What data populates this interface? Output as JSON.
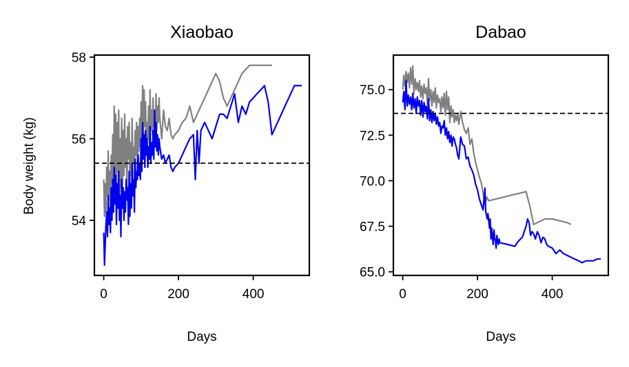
{
  "ylabel_shared": "Body weight (kg)",
  "colors": {
    "blue": "#0000ee",
    "gray": "#808080",
    "baseline": "#000000"
  },
  "chart_data": [
    {
      "type": "line",
      "title": "Xiaobao",
      "xlabel": "Days",
      "ylabel": "Body weight (kg)",
      "xlim": [
        -25,
        550
      ],
      "ylim": [
        52.65,
        58.05
      ],
      "xticks": [
        0,
        200,
        400
      ],
      "yticks": [
        54,
        56,
        58
      ],
      "grid": false,
      "baseline": 55.4,
      "series": [
        {
          "color": "#808080",
          "x": [
            0,
            2,
            4,
            6,
            8,
            10,
            12,
            14,
            16,
            18,
            20,
            22,
            24,
            26,
            28,
            30,
            32,
            34,
            36,
            38,
            40,
            42,
            44,
            46,
            48,
            50,
            52,
            54,
            56,
            58,
            60,
            62,
            64,
            66,
            68,
            70,
            72,
            74,
            76,
            78,
            80,
            82,
            84,
            86,
            88,
            90,
            92,
            94,
            96,
            98,
            100,
            102,
            104,
            106,
            108,
            110,
            112,
            114,
            116,
            118,
            120,
            122,
            124,
            126,
            128,
            130,
            132,
            134,
            136,
            138,
            140,
            142,
            144,
            146,
            148,
            150,
            155,
            160,
            165,
            170,
            175,
            180,
            185,
            190,
            200,
            210,
            220,
            230,
            240,
            250,
            260,
            270,
            280,
            290,
            300,
            310,
            320,
            330,
            340,
            350,
            360,
            370,
            380,
            390,
            400,
            410,
            420,
            430,
            440,
            450
          ],
          "y": [
            55.0,
            54.1,
            54.9,
            54.2,
            55.3,
            54.6,
            55.7,
            54.5,
            55.2,
            54.3,
            55.6,
            54.9,
            56.1,
            54.2,
            56.8,
            55.0,
            56.6,
            54.6,
            56.4,
            55.2,
            56.7,
            54.4,
            56.0,
            54.8,
            56.5,
            54.7,
            56.2,
            55.1,
            56.6,
            55.3,
            56.0,
            54.6,
            56.3,
            55.5,
            56.4,
            54.8,
            55.9,
            55.1,
            56.5,
            55.4,
            55.8,
            54.9,
            56.2,
            55.6,
            56.4,
            55.2,
            56.3,
            55.7,
            56.5,
            55.8,
            56.9,
            56.0,
            57.3,
            56.1,
            57.2,
            56.3,
            56.9,
            55.8,
            56.4,
            56.0,
            56.8,
            55.9,
            57.2,
            56.2,
            56.7,
            56.1,
            57.0,
            56.3,
            56.6,
            56.0,
            57.1,
            56.2,
            56.8,
            56.4,
            57.0,
            56.5,
            56.0,
            56.7,
            56.3,
            56.2,
            56.5,
            56.1,
            56.0,
            56.1,
            56.2,
            56.4,
            56.5,
            56.8,
            56.4,
            56.6,
            56.8,
            57.0,
            57.2,
            57.4,
            57.6,
            57.4,
            57.0,
            56.8,
            57.0,
            57.2,
            57.4,
            57.6,
            57.7,
            57.8,
            57.8,
            57.8,
            57.8,
            57.8,
            57.8,
            57.8
          ]
        },
        {
          "color": "#0000ee",
          "x": [
            0,
            2,
            4,
            6,
            8,
            10,
            12,
            14,
            16,
            18,
            20,
            22,
            24,
            26,
            28,
            30,
            32,
            34,
            36,
            38,
            40,
            42,
            44,
            46,
            48,
            50,
            52,
            54,
            56,
            58,
            60,
            62,
            64,
            66,
            68,
            70,
            72,
            74,
            76,
            78,
            80,
            82,
            84,
            86,
            88,
            90,
            92,
            94,
            96,
            98,
            100,
            102,
            104,
            106,
            108,
            110,
            112,
            114,
            116,
            118,
            120,
            122,
            124,
            126,
            128,
            130,
            132,
            134,
            136,
            138,
            140,
            142,
            144,
            146,
            148,
            150,
            155,
            160,
            165,
            170,
            175,
            180,
            185,
            190,
            200,
            210,
            220,
            230,
            240,
            245,
            250,
            255,
            260,
            270,
            280,
            290,
            300,
            310,
            320,
            330,
            340,
            350,
            360,
            370,
            380,
            390,
            400,
            410,
            420,
            430,
            440,
            450,
            460,
            470,
            480,
            490,
            500,
            510,
            520,
            530
          ],
          "y": [
            53.7,
            52.9,
            53.4,
            53.9,
            54.2,
            53.6,
            54.6,
            53.9,
            54.3,
            53.7,
            54.8,
            54.0,
            55.0,
            54.2,
            55.3,
            54.4,
            55.1,
            53.9,
            54.9,
            54.3,
            55.2,
            54.0,
            54.6,
            53.6,
            55.0,
            54.3,
            54.8,
            54.0,
            54.7,
            54.2,
            55.0,
            54.5,
            54.8,
            53.9,
            55.2,
            54.1,
            54.9,
            54.3,
            55.4,
            54.6,
            55.0,
            54.2,
            55.5,
            54.8,
            55.2,
            55.0,
            55.6,
            55.1,
            55.4,
            55.0,
            56.0,
            55.2,
            56.4,
            55.5,
            56.1,
            55.3,
            56.2,
            55.6,
            56.0,
            55.3,
            55.8,
            55.5,
            56.3,
            55.4,
            55.9,
            55.6,
            56.2,
            55.5,
            56.7,
            55.8,
            56.4,
            55.7,
            56.1,
            55.6,
            56.0,
            55.8,
            55.5,
            55.6,
            55.4,
            55.5,
            55.6,
            55.3,
            55.2,
            55.3,
            55.4,
            55.6,
            55.8,
            56.0,
            56.1,
            55.0,
            56.2,
            55.4,
            56.2,
            56.4,
            56.2,
            56.0,
            56.3,
            56.6,
            56.6,
            56.5,
            56.8,
            57.1,
            56.4,
            56.8,
            56.6,
            56.9,
            57.0,
            57.1,
            57.2,
            57.3,
            56.9,
            56.1,
            56.3,
            56.5,
            56.7,
            56.9,
            57.1,
            57.3,
            57.3,
            57.3
          ]
        }
      ]
    },
    {
      "type": "line",
      "title": "Dabao",
      "xlabel": "Days",
      "ylabel": "",
      "xlim": [
        -25,
        550
      ],
      "ylim": [
        64.8,
        76.9
      ],
      "xticks": [
        0,
        200,
        400
      ],
      "yticks": [
        65.0,
        67.5,
        70.0,
        72.5,
        75.0
      ],
      "ytick_labels": [
        "65.0",
        "67.5",
        "70.0",
        "72.5",
        "75.0"
      ],
      "grid": false,
      "baseline": 73.7,
      "series": [
        {
          "color": "#808080",
          "x": [
            0,
            3,
            6,
            9,
            12,
            15,
            18,
            21,
            24,
            27,
            30,
            33,
            36,
            39,
            42,
            45,
            48,
            51,
            54,
            57,
            60,
            63,
            66,
            69,
            72,
            75,
            78,
            81,
            84,
            87,
            90,
            93,
            96,
            99,
            102,
            105,
            108,
            111,
            114,
            117,
            120,
            123,
            126,
            129,
            132,
            135,
            138,
            141,
            144,
            147,
            150,
            155,
            160,
            165,
            170,
            175,
            180,
            185,
            190,
            195,
            200,
            205,
            210,
            215,
            220,
            225,
            230,
            250,
            270,
            290,
            310,
            330,
            340,
            350,
            360,
            380,
            400,
            420,
            440,
            450
          ],
          "y": [
            75.0,
            75.8,
            75.2,
            76.0,
            75.4,
            75.9,
            75.1,
            76.2,
            75.3,
            76.3,
            74.8,
            75.6,
            75.0,
            75.4,
            74.9,
            75.5,
            74.6,
            75.2,
            74.5,
            75.3,
            74.8,
            75.1,
            74.2,
            75.6,
            74.4,
            75.0,
            74.1,
            74.9,
            74.3,
            75.1,
            74.0,
            74.7,
            74.3,
            74.5,
            73.8,
            74.6,
            74.0,
            74.8,
            73.6,
            74.9,
            73.9,
            74.6,
            73.2,
            74.1,
            73.5,
            73.9,
            73.2,
            73.6,
            73.3,
            73.7,
            73.1,
            73.8,
            73.2,
            72.8,
            72.6,
            72.9,
            72.0,
            72.3,
            71.5,
            71.0,
            70.6,
            70.2,
            69.9,
            69.3,
            68.7,
            69.1,
            68.9,
            69.0,
            69.1,
            69.2,
            69.3,
            69.4,
            68.6,
            67.6,
            67.7,
            67.9,
            67.9,
            67.8,
            67.7,
            67.6
          ]
        },
        {
          "color": "#0000ee",
          "x": [
            0,
            3,
            6,
            9,
            12,
            15,
            18,
            21,
            24,
            27,
            30,
            33,
            36,
            39,
            42,
            45,
            48,
            51,
            54,
            57,
            60,
            63,
            66,
            69,
            72,
            75,
            78,
            81,
            84,
            87,
            90,
            93,
            96,
            99,
            102,
            105,
            108,
            111,
            114,
            117,
            120,
            123,
            126,
            129,
            132,
            135,
            138,
            141,
            144,
            147,
            150,
            155,
            160,
            165,
            170,
            175,
            180,
            185,
            190,
            195,
            200,
            205,
            210,
            215,
            220,
            222,
            224,
            226,
            228,
            230,
            232,
            234,
            236,
            238,
            240,
            242,
            244,
            246,
            248,
            250,
            252,
            254,
            256,
            258,
            260,
            280,
            300,
            310,
            320,
            330,
            334,
            338,
            342,
            346,
            350,
            355,
            360,
            365,
            370,
            375,
            380,
            385,
            390,
            400,
            410,
            420,
            430,
            440,
            450,
            460,
            470,
            480,
            490,
            500,
            510,
            520,
            530
          ],
          "y": [
            74.3,
            74.9,
            73.9,
            75.5,
            74.1,
            74.7,
            74.2,
            74.6,
            73.9,
            74.8,
            74.0,
            74.5,
            73.7,
            74.6,
            74.1,
            74.4,
            73.6,
            74.4,
            73.5,
            74.3,
            73.8,
            74.1,
            73.4,
            74.5,
            73.3,
            73.9,
            73.2,
            73.8,
            73.3,
            73.7,
            73.1,
            73.5,
            73.0,
            73.2,
            72.6,
            73.0,
            72.9,
            73.3,
            72.5,
            72.9,
            72.3,
            72.7,
            72.1,
            72.5,
            71.9,
            72.4,
            72.3,
            72.0,
            71.8,
            71.4,
            71.2,
            72.4,
            72.0,
            71.9,
            71.2,
            71.3,
            70.8,
            70.6,
            70.3,
            69.8,
            69.5,
            69.0,
            68.7,
            68.4,
            69.6,
            68.3,
            68.1,
            67.9,
            68.2,
            67.8,
            67.4,
            67.9,
            66.8,
            67.4,
            66.9,
            66.5,
            67.3,
            66.9,
            66.7,
            66.3,
            67.0,
            66.7,
            66.5,
            66.8,
            66.6,
            66.5,
            66.4,
            66.7,
            66.9,
            67.5,
            67.9,
            67.7,
            67.0,
            67.2,
            67.1,
            66.8,
            67.2,
            67.0,
            66.6,
            66.9,
            66.8,
            66.5,
            66.4,
            66.3,
            66.0,
            66.2,
            66.0,
            65.9,
            65.8,
            65.7,
            65.6,
            65.5,
            65.6,
            65.6,
            65.6,
            65.7,
            65.7
          ]
        }
      ]
    }
  ]
}
